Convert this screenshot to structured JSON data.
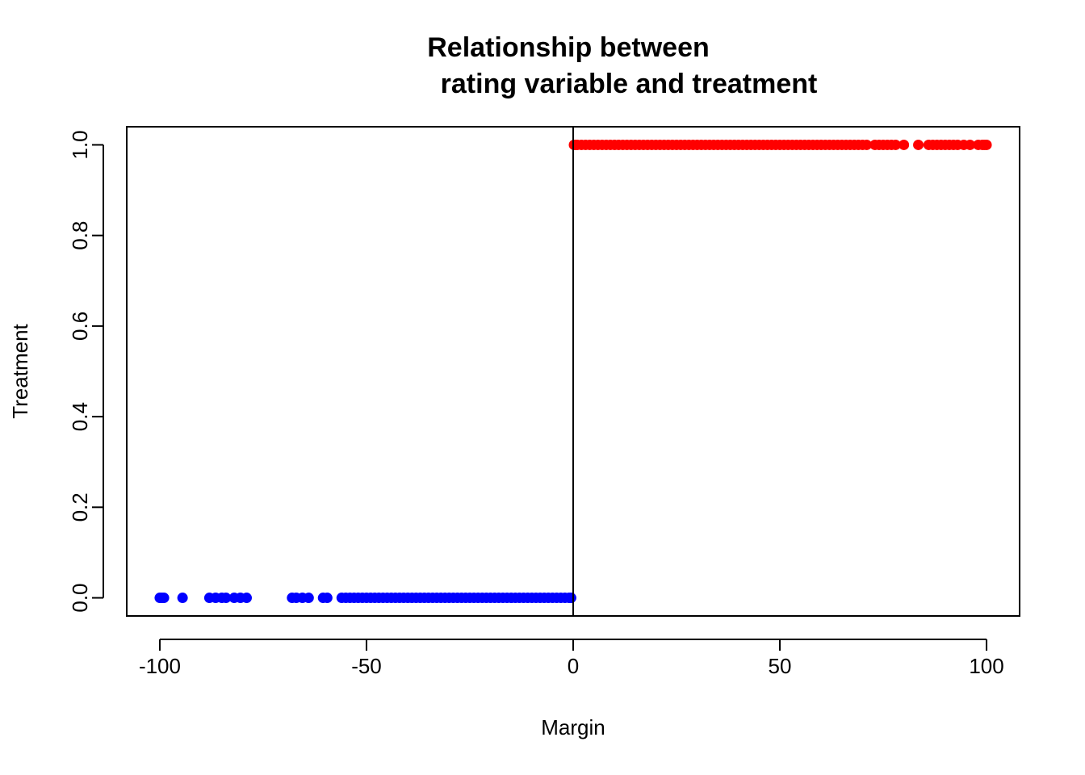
{
  "chart_data": {
    "type": "scatter",
    "title_line1": "Relationship between",
    "title_line2": "rating variable and treatment",
    "xlabel": "Margin",
    "ylabel": "Treatment",
    "xlim": [
      -108,
      108
    ],
    "ylim": [
      -0.04,
      1.04
    ],
    "x_ticks": [
      -100,
      -50,
      0,
      50,
      100
    ],
    "x_tick_labels": [
      "-100",
      "-50",
      "0",
      "50",
      "100"
    ],
    "y_ticks": [
      0.0,
      0.2,
      0.4,
      0.6,
      0.8,
      1.0
    ],
    "y_tick_labels": [
      "0.0",
      "0.2",
      "0.4",
      "0.6",
      "0.8",
      "1.0"
    ],
    "cutoff_line_x": 0,
    "grid": false,
    "series": [
      {
        "color": "#0000ff",
        "y": 0,
        "x": [
          -100,
          -99.5,
          -99,
          -94.5,
          -88,
          -86.5,
          -85,
          -84,
          -82,
          -80.5,
          -79,
          -68,
          -67,
          -65.5,
          -64,
          -60.5,
          -59.5,
          -56,
          -55,
          -54,
          -53,
          -52,
          -51,
          -50,
          -49,
          -48,
          -47,
          -46,
          -45,
          -44,
          -43,
          -42,
          -41,
          -40,
          -39,
          -38,
          -37,
          -36,
          -35,
          -34,
          -33,
          -32,
          -31,
          -30,
          -29,
          -28,
          -27,
          -26,
          -25,
          -24,
          -23,
          -22,
          -21,
          -20,
          -19,
          -18,
          -17,
          -16,
          -15,
          -14,
          -13,
          -12,
          -11,
          -10,
          -9,
          -8,
          -7,
          -6,
          -5,
          -4,
          -3,
          -2,
          -1,
          -0.5
        ]
      },
      {
        "color": "#ff0000",
        "y": 1,
        "x": [
          0.2,
          0.5,
          1,
          2,
          3,
          4,
          5,
          6,
          7,
          8,
          9,
          10,
          11,
          12,
          13,
          14,
          15,
          16,
          17,
          18,
          19,
          20,
          21,
          22,
          23,
          24,
          25,
          26,
          27,
          28,
          29,
          30,
          31,
          32,
          33,
          34,
          35,
          36,
          37,
          38,
          39,
          40,
          41,
          42,
          43,
          44,
          45,
          46,
          47,
          48,
          49,
          50,
          51,
          52,
          53,
          54,
          55,
          56,
          57,
          58,
          59,
          60,
          61,
          62,
          63,
          64,
          65,
          66,
          67,
          68,
          69,
          70,
          71,
          73,
          74,
          75,
          76,
          77,
          78,
          80,
          83.5,
          86,
          87,
          88,
          89,
          90,
          91,
          92,
          93,
          94.5,
          96,
          98,
          99,
          99.5,
          100
        ]
      }
    ]
  }
}
